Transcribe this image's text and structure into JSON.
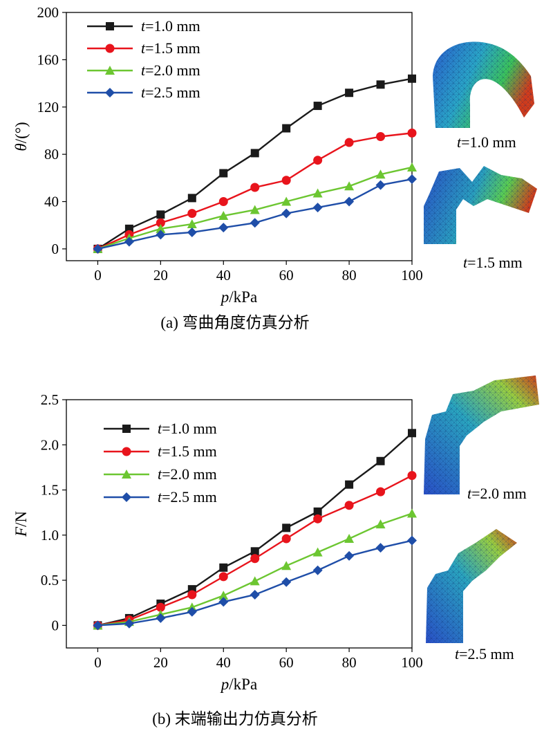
{
  "chart_data": [
    {
      "type": "line",
      "ylabel_var": "θ",
      "ylabel_unit": "/(°)",
      "xlabel_var": "p",
      "xlabel_unit": "/kPa",
      "caption": "(a) 弯曲角度仿真分析",
      "xlim": [
        -10,
        100
      ],
      "ylim": [
        -10,
        200
      ],
      "xticks": [
        0,
        20,
        40,
        60,
        80,
        100
      ],
      "yticks": [
        0,
        40,
        80,
        120,
        160,
        200
      ],
      "x": [
        0,
        10,
        20,
        30,
        40,
        50,
        60,
        70,
        80,
        90,
        100
      ],
      "legend_position": "top-left",
      "series": [
        {
          "name_var": "t",
          "name_rest": "=1.0 mm",
          "color": "#1a1a1a",
          "marker": "square",
          "values": [
            0,
            17,
            29,
            43,
            64,
            81,
            102,
            121,
            132,
            139,
            144
          ]
        },
        {
          "name_var": "t",
          "name_rest": "=1.5 mm",
          "color": "#e8141c",
          "marker": "circle",
          "values": [
            0,
            12,
            22,
            30,
            40,
            52,
            58,
            75,
            90,
            95,
            98
          ]
        },
        {
          "name_var": "t",
          "name_rest": "=2.0 mm",
          "color": "#6cc631",
          "marker": "triangle",
          "values": [
            0,
            9,
            17,
            21,
            28,
            33,
            40,
            47,
            53,
            63,
            69
          ]
        },
        {
          "name_var": "t",
          "name_rest": "=2.5 mm",
          "color": "#1f4ea8",
          "marker": "diamond",
          "values": [
            0,
            6,
            12,
            14,
            18,
            22,
            30,
            35,
            40,
            54,
            59
          ]
        }
      ],
      "sim_images": [
        {
          "label_var": "t",
          "label_rest": "=1.0 mm"
        },
        {
          "label_var": "t",
          "label_rest": "=1.5 mm"
        }
      ]
    },
    {
      "type": "line",
      "ylabel_var": "F",
      "ylabel_unit": "/N",
      "xlabel_var": "p",
      "xlabel_unit": "/kPa",
      "caption": "(b) 末端输出力仿真分析",
      "xlim": [
        -10,
        100
      ],
      "ylim": [
        -0.25,
        2.5
      ],
      "xticks": [
        0,
        20,
        40,
        60,
        80,
        100
      ],
      "yticks": [
        0,
        0.5,
        1.0,
        1.5,
        2.0,
        2.5
      ],
      "ytick_labels": [
        "0",
        "0.5",
        "1.0",
        "1.5",
        "2.0",
        "2.5"
      ],
      "x": [
        0,
        10,
        20,
        30,
        40,
        50,
        60,
        70,
        80,
        90,
        100
      ],
      "legend_position": "top-left",
      "series": [
        {
          "name_var": "t",
          "name_rest": "=1.0 mm",
          "color": "#1a1a1a",
          "marker": "square",
          "values": [
            0,
            0.08,
            0.24,
            0.4,
            0.64,
            0.82,
            1.08,
            1.26,
            1.56,
            1.82,
            2.13
          ]
        },
        {
          "name_var": "t",
          "name_rest": "=1.5 mm",
          "color": "#e8141c",
          "marker": "circle",
          "values": [
            0,
            0.06,
            0.2,
            0.34,
            0.54,
            0.74,
            0.96,
            1.18,
            1.33,
            1.48,
            1.66
          ]
        },
        {
          "name_var": "t",
          "name_rest": "=2.0 mm",
          "color": "#6cc631",
          "marker": "triangle",
          "values": [
            0,
            0.04,
            0.12,
            0.2,
            0.33,
            0.49,
            0.66,
            0.81,
            0.96,
            1.12,
            1.24
          ]
        },
        {
          "name_var": "t",
          "name_rest": "=2.5 mm",
          "color": "#1f4ea8",
          "marker": "diamond",
          "values": [
            0,
            0.02,
            0.08,
            0.15,
            0.26,
            0.34,
            0.48,
            0.61,
            0.77,
            0.86,
            0.94
          ]
        }
      ],
      "sim_images": [
        {
          "label_var": "t",
          "label_rest": "=2.0 mm"
        },
        {
          "label_var": "t",
          "label_rest": "=2.5 mm"
        }
      ]
    }
  ]
}
